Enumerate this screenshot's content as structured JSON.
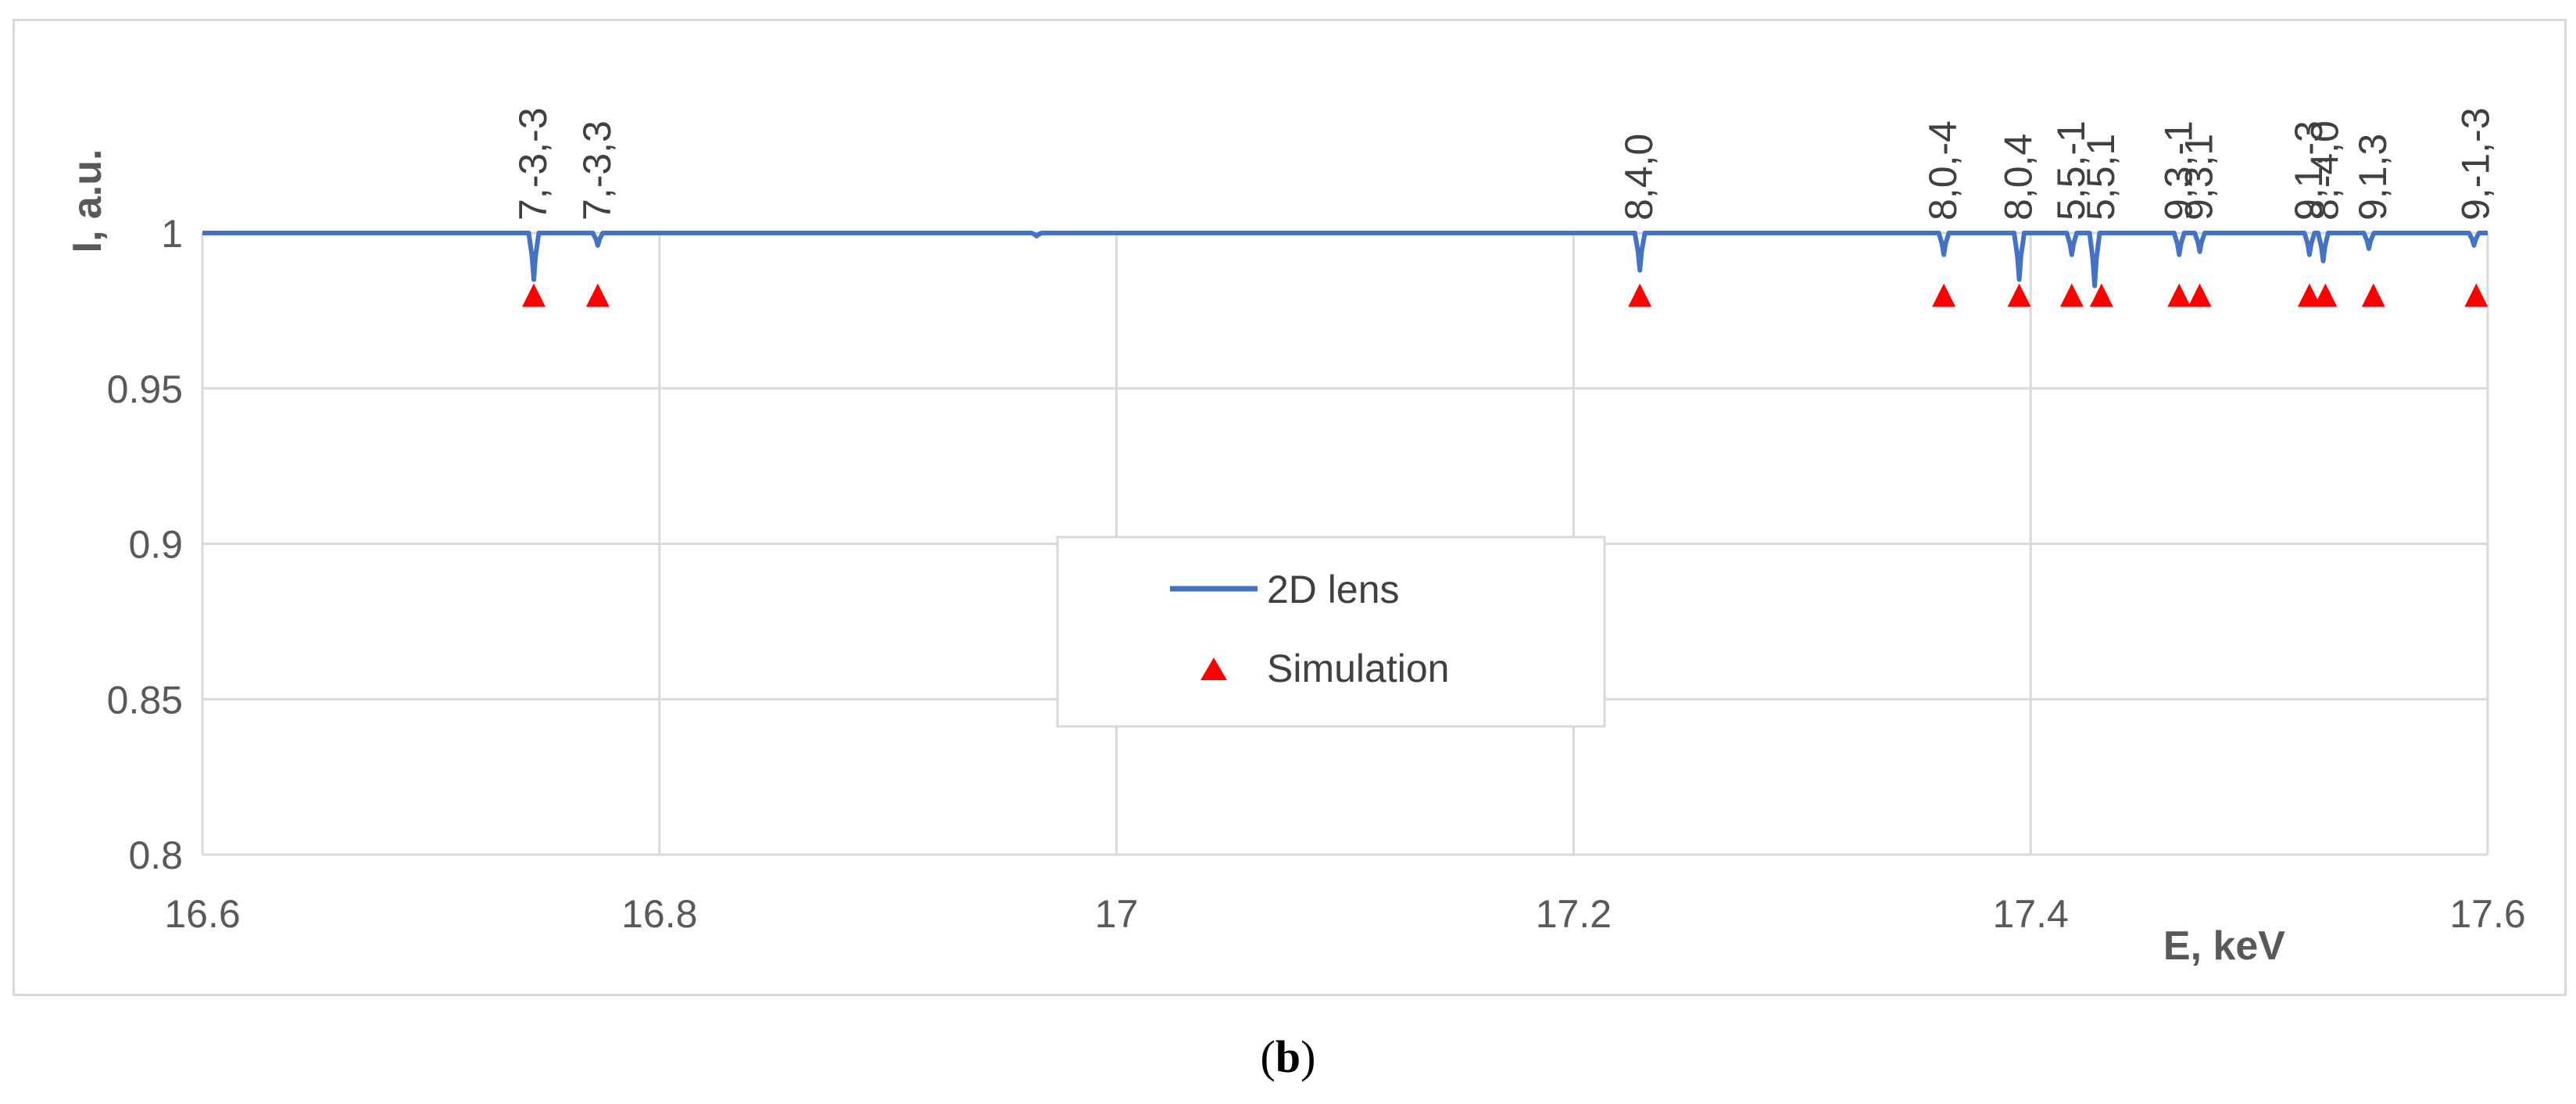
{
  "chart_data": {
    "type": "line",
    "xlabel": "E, keV",
    "ylabel": "I, a.u.",
    "xlim": [
      16.6,
      17.6
    ],
    "ylim": [
      0.8,
      1.0
    ],
    "x_ticks": [
      "16.6",
      "16.8",
      "17",
      "17.2",
      "17.4",
      "17.6"
    ],
    "y_ticks": [
      "0.8",
      "0.85",
      "0.9",
      "0.95",
      "1"
    ],
    "grid": true,
    "legend_position": "center",
    "colors": {
      "line": "#4472c4",
      "marker": "#ff0000",
      "grid": "#d9d9d9"
    },
    "series": [
      {
        "name": "2D lens",
        "style": "line",
        "baseline": 1.0,
        "dips": [
          {
            "x": 16.745,
            "y": 0.985
          },
          {
            "x": 16.773,
            "y": 0.996
          },
          {
            "x": 16.965,
            "y": 0.999
          },
          {
            "x": 17.229,
            "y": 0.988
          },
          {
            "x": 17.362,
            "y": 0.993
          },
          {
            "x": 17.395,
            "y": 0.985
          },
          {
            "x": 17.418,
            "y": 0.993
          },
          {
            "x": 17.428,
            "y": 0.983
          },
          {
            "x": 17.465,
            "y": 0.993
          },
          {
            "x": 17.474,
            "y": 0.994
          },
          {
            "x": 17.522,
            "y": 0.993
          },
          {
            "x": 17.528,
            "y": 0.991
          },
          {
            "x": 17.548,
            "y": 0.995
          },
          {
            "x": 17.594,
            "y": 0.996
          }
        ]
      },
      {
        "name": "Simulation",
        "style": "marker",
        "points": [
          {
            "x": 16.745,
            "y": 0.98
          },
          {
            "x": 16.773,
            "y": 0.98
          },
          {
            "x": 17.229,
            "y": 0.98
          },
          {
            "x": 17.362,
            "y": 0.98
          },
          {
            "x": 17.395,
            "y": 0.98
          },
          {
            "x": 17.418,
            "y": 0.98
          },
          {
            "x": 17.431,
            "y": 0.98
          },
          {
            "x": 17.465,
            "y": 0.98
          },
          {
            "x": 17.474,
            "y": 0.98
          },
          {
            "x": 17.522,
            "y": 0.98
          },
          {
            "x": 17.529,
            "y": 0.98
          },
          {
            "x": 17.55,
            "y": 0.98
          },
          {
            "x": 17.595,
            "y": 0.98
          }
        ]
      }
    ],
    "annotations": [
      {
        "text": "7,-3,-3",
        "x": 16.745
      },
      {
        "text": "7,-3,3",
        "x": 16.773
      },
      {
        "text": "8,4,0",
        "x": 17.229
      },
      {
        "text": "8,0,-4",
        "x": 17.362
      },
      {
        "text": "8,0,4",
        "x": 17.395
      },
      {
        "text": "5,5,-1",
        "x": 17.418
      },
      {
        "text": "5,5,1",
        "x": 17.431
      },
      {
        "text": "9,3,-1",
        "x": 17.465
      },
      {
        "text": "9,3,1",
        "x": 17.474
      },
      {
        "text": "9,1,-3",
        "x": 17.522
      },
      {
        "text": "8,-4,0",
        "x": 17.529
      },
      {
        "text": "9,1,3",
        "x": 17.55
      },
      {
        "text": "9,-1,-3",
        "x": 17.595
      }
    ]
  },
  "caption": {
    "open": "(",
    "letter": "b",
    "close": ")"
  }
}
